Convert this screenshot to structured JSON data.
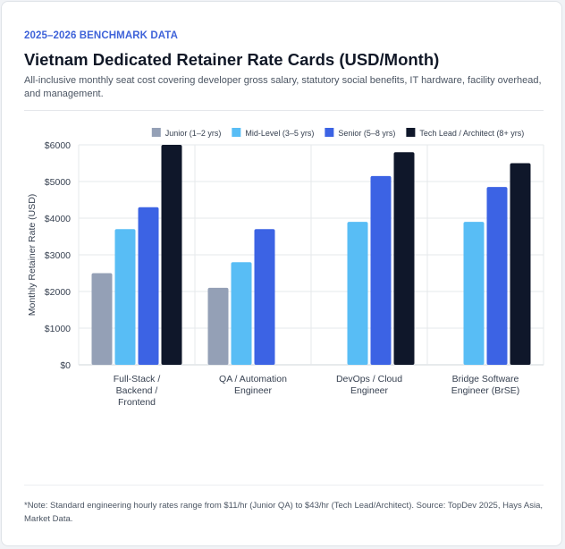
{
  "header": {
    "eyebrow": "2025–2026 BENCHMARK DATA",
    "title": "Vietnam Dedicated Retainer Rate Cards (USD/Month)",
    "subtitle": "All-inclusive monthly seat cost covering developer gross salary, statutory social benefits, IT hardware, facility overhead, and management."
  },
  "footnote": "*Note: Standard engineering hourly rates range from $11/hr (Junior QA) to $43/hr (Tech Lead/Architect). Source: TopDev 2025, Hays Asia, Market Data.",
  "chart_data": {
    "type": "bar",
    "categories": [
      [
        "Full-Stack /",
        "Backend /",
        "Frontend"
      ],
      [
        "QA / Automation",
        "Engineer"
      ],
      [
        "DevOps / Cloud",
        "Engineer"
      ],
      [
        "Bridge Software",
        "Engineer (BrSE)"
      ]
    ],
    "series": [
      {
        "name": "Junior (1–2 yrs)",
        "color": "#94a0b6",
        "values": [
          2500,
          2100,
          null,
          null
        ]
      },
      {
        "name": "Mid-Level (3–5 yrs)",
        "color": "#58bdf5",
        "values": [
          3700,
          2800,
          3900,
          3900
        ]
      },
      {
        "name": "Senior (5–8 yrs)",
        "color": "#3c63e4",
        "values": [
          4300,
          3700,
          5150,
          4850
        ]
      },
      {
        "name": "Tech Lead / Architect (8+ yrs)",
        "color": "#0f172a",
        "values": [
          6000,
          null,
          5800,
          5500
        ]
      }
    ],
    "ylabel": "Monthly Retainer Rate (USD)",
    "xlabel": "",
    "ylim": [
      0,
      6000
    ],
    "yticks": [
      "$0",
      "$1000",
      "$2000",
      "$3000",
      "$4000",
      "$5000",
      "$6000"
    ],
    "legend": "top-center",
    "grid": true
  }
}
